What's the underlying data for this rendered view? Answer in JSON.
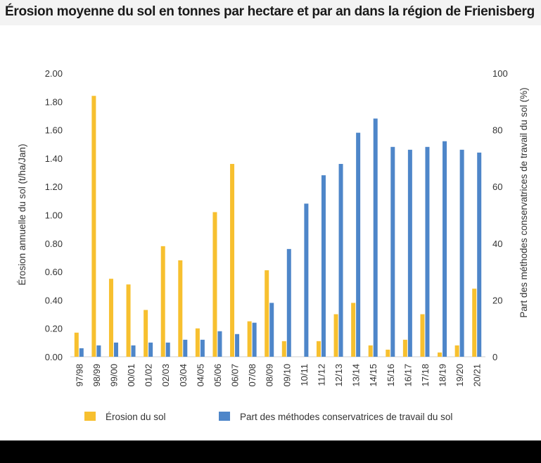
{
  "title": "Érosion moyenne du sol en tonnes par hectare et par an dans la région de Frienisberg",
  "chart_data": {
    "type": "bar",
    "categories": [
      "97/98",
      "98/99",
      "99/00",
      "00/01",
      "01/02",
      "02/03",
      "03/04",
      "04/05",
      "05/06",
      "06/07",
      "07/08",
      "08/09",
      "09/10",
      "10/11",
      "11/12",
      "12/13",
      "13/14",
      "14/15",
      "15/16",
      "16/17",
      "17/18",
      "18/19",
      "19/20",
      "20/21"
    ],
    "series": [
      {
        "name": "Érosion du sol",
        "axis": "left",
        "color": "#f7c02f",
        "values": [
          0.17,
          1.84,
          0.55,
          0.51,
          0.33,
          0.78,
          0.68,
          0.2,
          1.02,
          1.36,
          0.25,
          0.61,
          0.11,
          0.0,
          0.11,
          0.3,
          0.38,
          0.08,
          0.05,
          0.12,
          0.3,
          0.03,
          0.08,
          0.48
        ]
      },
      {
        "name": "Part des méthodes conservatrices de travail du sol",
        "axis": "right",
        "color": "#4e86c9",
        "values": [
          3,
          4,
          5,
          4,
          5,
          5,
          6,
          6,
          9,
          8,
          12,
          19,
          38,
          54,
          64,
          68,
          79,
          84,
          74,
          73,
          74,
          76,
          73,
          72
        ]
      }
    ],
    "ylabel": "Érosion annuelle du sol (t/ha/Jan)",
    "y2label": "Part des méthodes conservatrices de travail du sol  (%)",
    "ylim": [
      0,
      2.0
    ],
    "yticks": [
      "0.00",
      "0.20",
      "0.40",
      "0.60",
      "0.80",
      "1.00",
      "1.20",
      "1.40",
      "1.60",
      "1.80",
      "2.00"
    ],
    "y2lim": [
      0,
      100
    ],
    "y2ticks": [
      "0",
      "20",
      "40",
      "60",
      "80",
      "100"
    ],
    "grid": false,
    "legend": "bottom"
  }
}
